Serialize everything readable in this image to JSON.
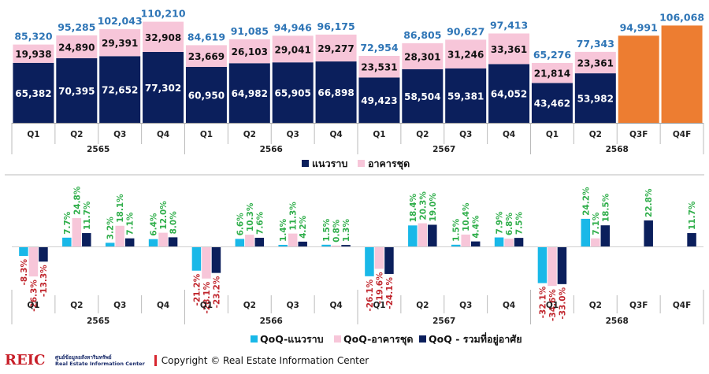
{
  "chart_data": [
    {
      "type": "bar",
      "stacked": true,
      "groups": [
        {
          "year": "2565",
          "quarters": [
            "Q1",
            "Q2",
            "Q3",
            "Q4"
          ]
        },
        {
          "year": "2566",
          "quarters": [
            "Q1",
            "Q2",
            "Q3",
            "Q4"
          ]
        },
        {
          "year": "2567",
          "quarters": [
            "Q1",
            "Q2",
            "Q3",
            "Q4"
          ]
        },
        {
          "year": "2568",
          "quarters": [
            "Q1",
            "Q2",
            "Q3F",
            "Q4F"
          ]
        }
      ],
      "series": [
        {
          "name": "แนวราบ",
          "color": "#0b1f5c",
          "values": [
            "65,382",
            "70,395",
            "72,652",
            "77,302",
            "60,950",
            "64,982",
            "65,905",
            "66,898",
            "49,423",
            "58,504",
            "59,381",
            "64,052",
            "43,462",
            "53,982",
            null,
            null
          ]
        },
        {
          "name": "อาคารชุด",
          "color": "#f7c6d9",
          "values": [
            "19,938",
            "24,890",
            "29,391",
            "32,908",
            "23,669",
            "26,103",
            "29,041",
            "29,277",
            "23,531",
            "28,301",
            "31,246",
            "33,361",
            "21,814",
            "23,361",
            null,
            null
          ]
        }
      ],
      "totals": [
        "85,320",
        "95,285",
        "102,043",
        "110,210",
        "84,619",
        "91,085",
        "94,946",
        "96,175",
        "72,954",
        "86,805",
        "90,627",
        "97,413",
        "65,276",
        "77,343",
        "94,991",
        "106,068"
      ],
      "forecast_color": "#ed7d31",
      "total_label_color": "#2e75b6",
      "ylim": [
        0,
        115000
      ],
      "legend_position": "bottom"
    },
    {
      "type": "bar",
      "groups": [
        {
          "year": "2565",
          "quarters": [
            "Q1",
            "Q2",
            "Q3",
            "Q4"
          ]
        },
        {
          "year": "2566",
          "quarters": [
            "Q1",
            "Q2",
            "Q3",
            "Q4"
          ]
        },
        {
          "year": "2567",
          "quarters": [
            "Q1",
            "Q2",
            "Q3",
            "Q4"
          ]
        },
        {
          "year": "2568",
          "quarters": [
            "Q1",
            "Q2",
            "Q3F",
            "Q4F"
          ]
        }
      ],
      "series": [
        {
          "name": "QoQ-แนวราบ",
          "color": "#19b8e8",
          "values": [
            -8.3,
            7.7,
            3.2,
            6.4,
            -21.2,
            6.6,
            1.4,
            1.5,
            -26.1,
            18.4,
            1.5,
            7.9,
            -32.1,
            24.2,
            null,
            null
          ]
        },
        {
          "name": "QoQ-อาคารชุด",
          "color": "#f7c6d9",
          "values": [
            -26.3,
            24.8,
            18.1,
            12.0,
            -28.1,
            10.3,
            11.3,
            0.8,
            -19.6,
            20.3,
            10.4,
            6.8,
            -34.6,
            7.1,
            null,
            null
          ]
        },
        {
          "name": "QoQ - รวมที่อยู่อาศัย",
          "color": "#0b1f5c",
          "values": [
            -13.3,
            11.7,
            7.1,
            8.0,
            -23.2,
            7.6,
            4.2,
            1.3,
            -24.1,
            19.0,
            4.4,
            7.5,
            -33.0,
            18.5,
            22.8,
            11.7
          ]
        }
      ],
      "positive_label_color": "#2fae4a",
      "negative_label_color": "#c0262d",
      "ylim": [
        -40,
        30
      ],
      "legend_position": "bottom"
    }
  ],
  "footer": {
    "logo_mark": "REIC",
    "logo_line1": "ศูนย์ข้อมูลอสังหาริมทรัพย์",
    "logo_line2": "Real Estate Information Center",
    "copyright": "Copyright © Real Estate Information Center"
  }
}
